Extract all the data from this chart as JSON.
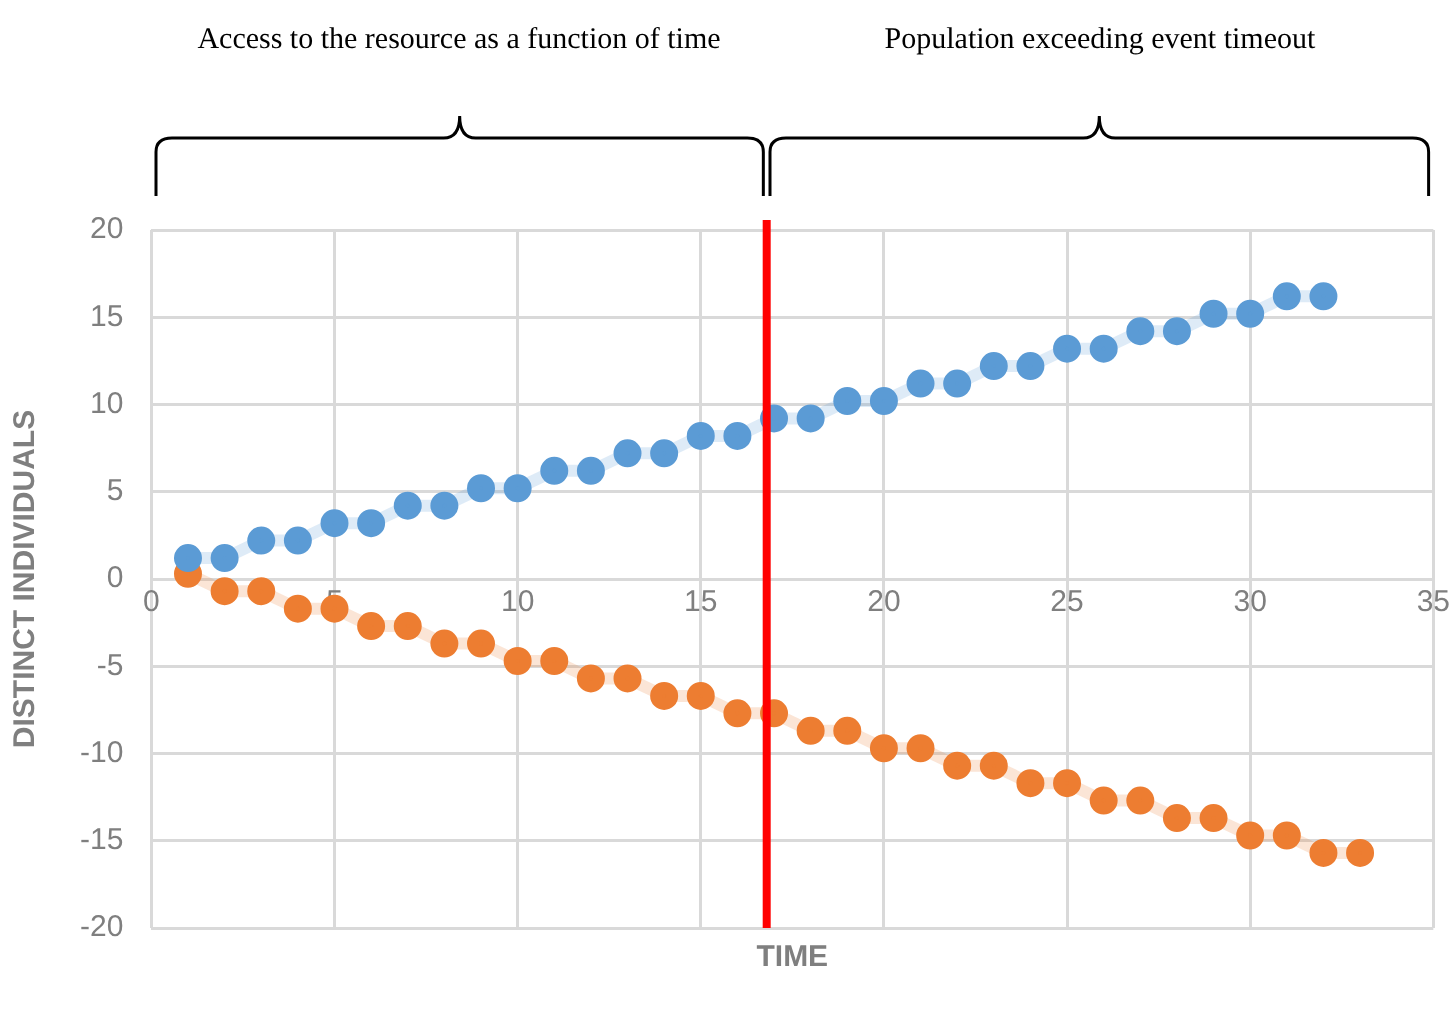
{
  "chart_data": {
    "type": "line",
    "xlabel": "TIME",
    "ylabel": "DISTINCT INDIVIDUALS",
    "annotations": [
      "Access to the resource as a function of time",
      "Population exceeding event timeout"
    ],
    "series": [
      {
        "color": "#5b9bd5",
        "x": [
          1,
          2,
          3,
          4,
          5,
          6,
          7,
          8,
          9,
          10,
          11,
          12,
          13,
          14,
          15,
          16,
          17,
          18,
          19,
          20,
          21,
          22,
          23,
          24,
          25,
          26,
          27,
          28,
          29,
          30,
          31,
          32
        ],
        "values": [
          1.2,
          1.2,
          2.2,
          2.2,
          3.2,
          3.2,
          4.2,
          4.2,
          5.2,
          5.2,
          6.2,
          6.2,
          7.2,
          7.2,
          8.2,
          8.2,
          9.2,
          9.2,
          10.2,
          10.2,
          11.2,
          11.2,
          12.2,
          12.2,
          13.2,
          13.2,
          14.2,
          14.2,
          15.2,
          15.2,
          16.2,
          16.2
        ]
      },
      {
        "color": "#ed7d31",
        "x": [
          1,
          2,
          3,
          4,
          5,
          6,
          7,
          8,
          9,
          10,
          11,
          12,
          13,
          14,
          15,
          16,
          17,
          18,
          19,
          20,
          21,
          22,
          23,
          24,
          25,
          26,
          27,
          28,
          29,
          30,
          31,
          32,
          33
        ],
        "values": [
          0.3,
          -0.7,
          -0.7,
          -1.7,
          -1.7,
          -2.7,
          -2.7,
          -3.7,
          -3.7,
          -4.7,
          -4.7,
          -5.7,
          -5.7,
          -6.7,
          -6.7,
          -7.7,
          -7.7,
          -8.7,
          -8.7,
          -9.7,
          -9.7,
          -10.7,
          -10.7,
          -11.7,
          -11.7,
          -12.7,
          -12.7,
          -13.7,
          -13.7,
          -14.7,
          -14.7,
          -15.7,
          -15.7
        ]
      }
    ],
    "ref_lines": [
      {
        "axis": "x",
        "value": 16.8,
        "color": "#ff0000"
      }
    ],
    "xlim": [
      0,
      35
    ],
    "xticks": [
      0,
      5,
      10,
      15,
      20,
      25,
      30,
      35
    ],
    "ylim": [
      -20,
      20
    ],
    "yticks": [
      -20,
      -15,
      -10,
      -5,
      0,
      5,
      10,
      15,
      20
    ],
    "grid": true,
    "legend": false,
    "marker": "circle",
    "line_style": "solid"
  }
}
